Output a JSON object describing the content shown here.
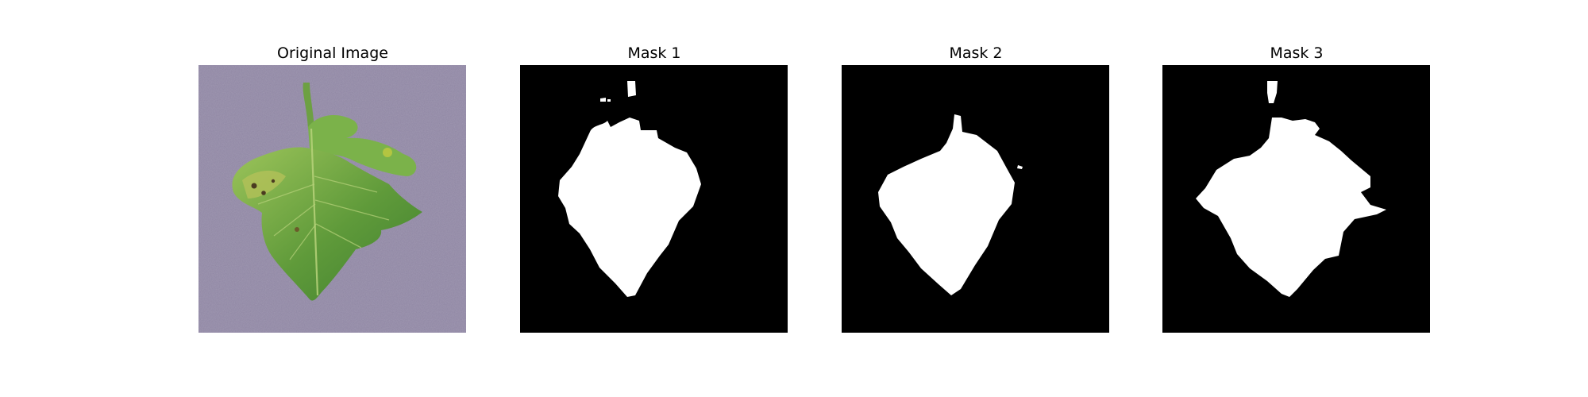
{
  "figure": {
    "panels": [
      {
        "title": "Original Image",
        "kind": "photo"
      },
      {
        "title": "Mask 1",
        "kind": "mask"
      },
      {
        "title": "Mask 2",
        "kind": "mask"
      },
      {
        "title": "Mask 3",
        "kind": "mask"
      }
    ],
    "colors": {
      "background": "#ffffff",
      "mask_background": "#000000",
      "mask_foreground": "#ffffff",
      "photo_background": "#8f86a3",
      "leaf_light": "#7fb24a",
      "leaf_dark": "#3f7f2f",
      "leaf_spot": "#4a3b20"
    }
  }
}
